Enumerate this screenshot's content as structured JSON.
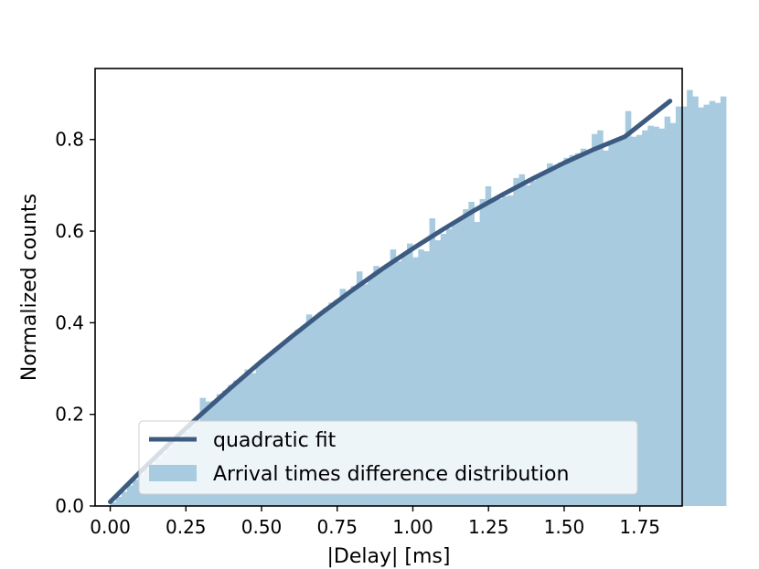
{
  "chart_data": {
    "type": "bar",
    "xlabel": "|Delay| [ms]",
    "ylabel": "Normalized counts",
    "xlim": [
      -0.05,
      1.89
    ],
    "ylim": [
      0.0,
      0.955
    ],
    "xticks": [
      "0.00",
      "0.25",
      "0.50",
      "0.75",
      "1.00",
      "1.25",
      "1.50",
      "1.75"
    ],
    "yticks": [
      "0.0",
      "0.2",
      "0.4",
      "0.6",
      "0.8"
    ],
    "grid": false,
    "legend_position": "lower-center",
    "histogram": {
      "name": "Arrival times difference distribution",
      "color": "#a8cbe0",
      "bin_start": 0.0,
      "bin_width": 0.0185,
      "values": [
        0.008,
        0.02,
        0.031,
        0.045,
        0.057,
        0.069,
        0.08,
        0.092,
        0.104,
        0.115,
        0.128,
        0.138,
        0.15,
        0.162,
        0.175,
        0.185,
        0.236,
        0.228,
        0.23,
        0.244,
        0.252,
        0.264,
        0.274,
        0.282,
        0.298,
        0.29,
        0.307,
        0.32,
        0.333,
        0.344,
        0.352,
        0.362,
        0.368,
        0.385,
        0.392,
        0.418,
        0.41,
        0.422,
        0.432,
        0.444,
        0.45,
        0.474,
        0.468,
        0.48,
        0.512,
        0.484,
        0.497,
        0.524,
        0.516,
        0.528,
        0.56,
        0.534,
        0.546,
        0.573,
        0.543,
        0.56,
        0.556,
        0.628,
        0.58,
        0.594,
        0.605,
        0.62,
        0.628,
        0.648,
        0.664,
        0.62,
        0.67,
        0.698,
        0.666,
        0.67,
        0.676,
        0.678,
        0.716,
        0.724,
        0.7,
        0.71,
        0.72,
        0.724,
        0.748,
        0.736,
        0.75,
        0.76,
        0.766,
        0.77,
        0.78,
        0.77,
        0.812,
        0.82,
        0.776,
        0.794,
        0.802,
        0.804,
        0.862,
        0.806,
        0.81,
        0.82,
        0.83,
        0.828,
        0.824,
        0.85,
        0.836,
        0.872,
        0.872,
        0.908,
        0.894,
        0.87,
        0.876,
        0.884,
        0.88,
        0.894
      ]
    },
    "series": [
      {
        "name": "quadratic fit",
        "type": "line",
        "color": "#3d5a80",
        "x": [
          0.0,
          0.1,
          0.2,
          0.3,
          0.4,
          0.5,
          0.6,
          0.7,
          0.8,
          0.9,
          1.0,
          1.1,
          1.2,
          1.3,
          1.4,
          1.5,
          1.6,
          1.7,
          1.85
        ],
        "y": [
          0.009,
          0.075,
          0.139,
          0.2,
          0.259,
          0.316,
          0.37,
          0.422,
          0.471,
          0.518,
          0.562,
          0.604,
          0.644,
          0.681,
          0.716,
          0.749,
          0.779,
          0.806,
          0.884
        ]
      }
    ]
  }
}
